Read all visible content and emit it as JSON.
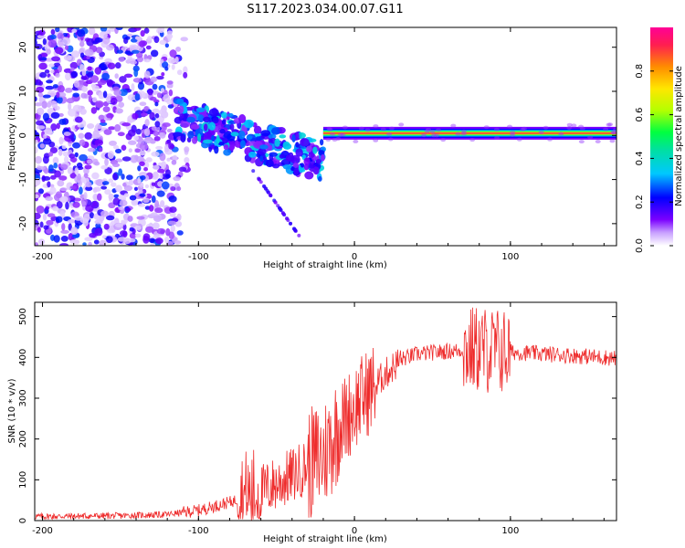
{
  "title": "S117.2023.034.00.07.G11",
  "chart_data": [
    {
      "type": "heatmap",
      "xlabel": "Height of straight line (km)",
      "ylabel": "Frequency (Hz)",
      "xlim": [
        -205,
        168
      ],
      "ylim": [
        -25,
        24.5
      ],
      "xticks": [
        -200,
        -100,
        0,
        100
      ],
      "yticks": [
        -20,
        -10,
        0,
        10,
        20
      ],
      "colorbar": {
        "label": "Normalized spectral amplitude",
        "range": [
          0,
          1
        ],
        "ticks": [
          "0.0",
          "0.2",
          "0.4",
          "0.6",
          "0.8"
        ],
        "colormap": [
          "#ffffff",
          "#7a00ff",
          "#0000ff",
          "#00c8ff",
          "#00ff40",
          "#b4ff00",
          "#ffe600",
          "#ff8c00",
          "#ff1e50",
          "#ff0096"
        ]
      },
      "features": {
        "noise_region_x": [
          -205,
          -110
        ],
        "noise_level": 0.25,
        "tilted_signal_x": [
          -115,
          -20
        ],
        "tilted_signal_y": [
          4,
          -6
        ],
        "steady_tone_x": [
          -20,
          168
        ],
        "steady_tone_y": 0.5,
        "steady_tone_level": 0.9
      }
    },
    {
      "type": "line",
      "xlabel": "Height of straight line (km)",
      "ylabel": "SNR (10 * v/v)",
      "xlim": [
        -205,
        168
      ],
      "ylim": [
        0,
        535
      ],
      "xticks": [
        -200,
        -100,
        0,
        100
      ],
      "yticks": [
        0,
        100,
        200,
        300,
        400,
        500
      ],
      "series": [
        {
          "color": "#ee2b2b",
          "profile": [
            [
              -205,
              10
            ],
            [
              -150,
              12
            ],
            [
              -120,
              15
            ],
            [
              -100,
              25
            ],
            [
              -80,
              45
            ],
            [
              -60,
              70
            ],
            [
              -40,
              110
            ],
            [
              -20,
              160
            ],
            [
              -10,
              230
            ],
            [
              0,
              280
            ],
            [
              10,
              320
            ],
            [
              20,
              360
            ],
            [
              30,
              395
            ],
            [
              40,
              408
            ],
            [
              60,
              415
            ],
            [
              80,
              420
            ],
            [
              100,
              413
            ],
            [
              130,
              407
            ],
            [
              168,
              398
            ]
          ]
        }
      ]
    }
  ]
}
